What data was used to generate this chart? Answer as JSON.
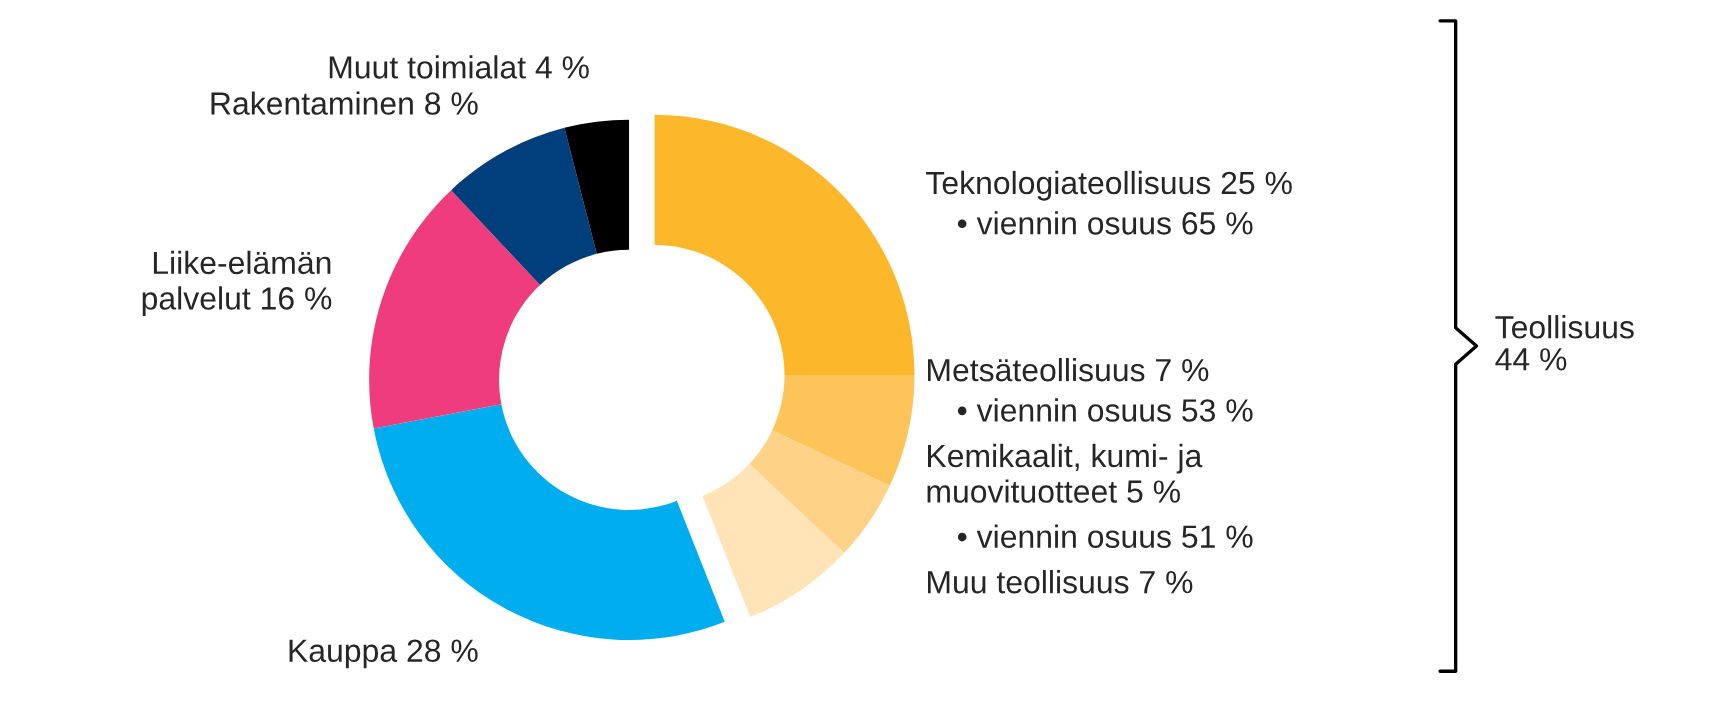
{
  "chart_data": {
    "type": "donut",
    "categories": [
      "Teknologiateollisuus 25 %",
      "Metsäteollisuus 7 %",
      "Kemikaalit, kumi- ja\nmuovituotteet 5 %",
      "Muu teollisuus 7 %",
      "Kauppa 28 %",
      "Liike-elämän\npalvelut 16 %",
      "Rakentaminen 8 %",
      "Muut toimialat 4 %"
    ],
    "values": [
      25,
      7,
      5,
      7,
      28,
      16,
      8,
      4
    ],
    "colors": [
      "#fdb72a",
      "#fdc45a",
      "#fed287",
      "#fee4b6",
      "#00aeef",
      "#ef3c7d",
      "#003f7c",
      "#000000"
    ],
    "annotations": [
      {
        "text": "• viennin osuus 65 %",
        "x": "Teknologiateollisuus 25 %"
      },
      {
        "text": "• viennin osuus 53 %",
        "x": "Metsäteollisuus 7 %"
      },
      {
        "text": "• viennin osuus 51 %",
        "x": "Kemikaalit, kumi- ja\nmuovituotteet 5 %"
      },
      "Teollisuus\n44 %"
    ]
  }
}
